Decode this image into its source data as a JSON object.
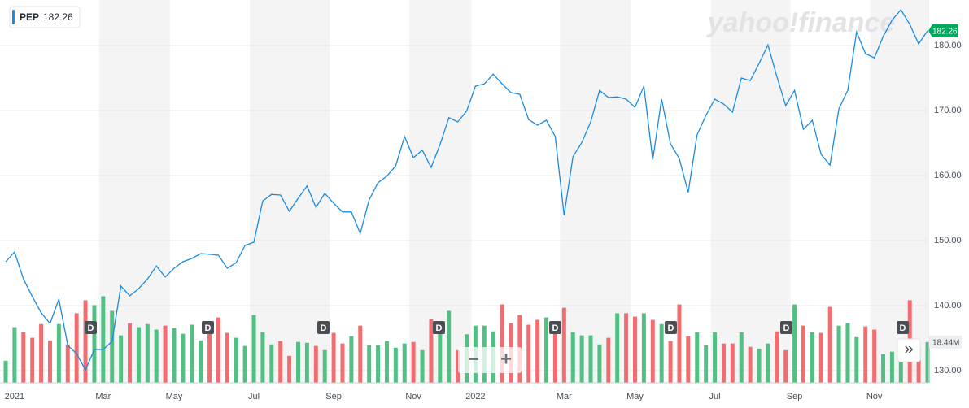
{
  "chart_data": {
    "type": "line",
    "watermark": "yahoo!finance",
    "categories": [
      null,
      "2021",
      null,
      null,
      null,
      null,
      null,
      null,
      null,
      null,
      null,
      "Mar",
      null,
      null,
      null,
      null,
      null,
      null,
      null,
      "May",
      null,
      null,
      null,
      null,
      null,
      null,
      null,
      null,
      "Jul",
      null,
      null,
      null,
      null,
      null,
      null,
      null,
      null,
      "Sep",
      null,
      null,
      null,
      null,
      null,
      null,
      null,
      null,
      "Nov",
      null,
      null,
      null,
      null,
      null,
      null,
      "2022",
      null,
      null,
      null,
      null,
      null,
      null,
      null,
      null,
      null,
      "Mar",
      null,
      null,
      null,
      null,
      null,
      null,
      null,
      "May",
      null,
      null,
      null,
      null,
      null,
      null,
      null,
      null,
      "Jul",
      null,
      null,
      null,
      null,
      null,
      null,
      null,
      null,
      "Sep",
      null,
      null,
      null,
      null,
      null,
      null,
      null,
      null,
      "Nov",
      null,
      null,
      null,
      null,
      null,
      null
    ],
    "series": [
      {
        "name": "PEP",
        "color": "#1a8be0",
        "values": [
          146.75,
          148.25,
          144.1,
          141.4,
          138.9,
          137.25,
          141,
          133.9,
          132.6,
          130.1,
          133.25,
          133.25,
          134.5,
          143,
          141.5,
          142.6,
          144.1,
          146.1,
          144.4,
          145.75,
          146.75,
          147.25,
          148,
          147.9,
          147.75,
          145.75,
          146.6,
          149.25,
          149.75,
          156.1,
          157.1,
          157,
          154.5,
          156.5,
          158.4,
          155.1,
          157.25,
          155.75,
          154.4,
          154.4,
          151.1,
          156.25,
          158.9,
          159.9,
          161.5,
          166,
          162.75,
          163.9,
          161.25,
          164.75,
          168.9,
          168.25,
          169.9,
          173.75,
          174.1,
          175.6,
          174.1,
          172.75,
          172.5,
          168.6,
          167.75,
          168.5,
          166,
          153.9,
          162.9,
          165.1,
          168.25,
          173.1,
          172,
          172.1,
          171.75,
          170.5,
          173.75,
          162.4,
          171.75,
          164.9,
          162.6,
          157.4,
          166.25,
          169.25,
          171.75,
          171,
          169.75,
          175,
          174.6,
          177.25,
          180.1,
          175.25,
          170.75,
          173.1,
          167.1,
          168.5,
          163.25,
          161.6,
          170.25,
          173.1,
          182.1,
          178.75,
          178.1,
          181.4,
          183.9,
          185.5,
          183.25,
          180.25,
          182.26
        ]
      }
    ],
    "volume": {
      "up_color": "#52c083",
      "down_color": "#f26d70",
      "values": [
        10.0,
        25.2,
        22.9,
        20.4,
        26.6,
        19.2,
        26.6,
        17.4,
        31.5,
        37.4,
        35.2,
        39.2,
        32.6,
        21.5,
        27.0,
        25.2,
        26.6,
        24.1,
        25.9,
        24.8,
        22.2,
        26.3,
        19.2,
        23.7,
        29.6,
        22.6,
        20.4,
        16.7,
        30.7,
        22.9,
        17.4,
        18.9,
        12.2,
        18.5,
        18.1,
        16.7,
        14.8,
        22.6,
        17.8,
        21.1,
        25.9,
        17.0,
        17.0,
        18.9,
        15.9,
        17.8,
        18.5,
        14.8,
        28.9,
        23.3,
        32.6,
        14.8,
        22.0,
        25.9,
        25.9,
        23.3,
        35.5,
        27.0,
        30.7,
        26.3,
        28.5,
        29.6,
        27.4,
        34.0,
        22.9,
        21.5,
        21.5,
        17.4,
        20.4,
        31.5,
        31.5,
        30.0,
        31.5,
        28.5,
        26.6,
        18.9,
        35.5,
        21.1,
        22.9,
        17.0,
        22.9,
        17.8,
        17.8,
        22.9,
        16.3,
        15.5,
        17.8,
        23.3,
        14.8,
        35.5,
        25.9,
        22.9,
        22.6,
        34.4,
        25.9,
        27.0,
        20.7,
        25.5,
        24.1,
        13.0,
        14.1,
        20.0,
        37.4,
        16.0,
        18.44
      ],
      "value_labels": [
        null,
        null,
        null,
        null,
        null,
        null,
        null,
        null,
        null,
        null,
        null,
        null,
        null,
        null,
        null,
        null,
        null,
        null,
        null,
        null,
        null,
        null,
        null,
        null,
        null,
        null,
        null,
        null,
        null,
        null,
        null,
        null,
        null,
        null,
        null,
        null,
        null,
        null,
        null,
        null,
        null,
        null,
        null,
        null,
        null,
        null,
        null,
        null,
        null,
        null,
        null,
        null,
        null,
        null,
        null,
        null,
        null,
        null,
        null,
        null,
        null,
        null,
        null,
        null,
        null,
        null,
        null,
        null,
        null,
        null,
        null,
        null,
        null,
        null,
        null,
        null,
        null,
        null,
        null,
        null,
        null,
        null,
        null,
        null,
        null,
        null,
        null,
        null,
        null,
        null,
        null,
        null,
        null,
        null,
        null,
        null,
        null,
        null,
        null,
        null,
        null,
        null,
        null,
        null,
        "18.44M"
      ]
    },
    "ylim": [
      128.125,
      187
    ],
    "yticks": [
      {
        "value": 130,
        "label": "130.00"
      },
      {
        "value": 140,
        "label": "140.00"
      },
      {
        "value": 150,
        "label": "150.00"
      },
      {
        "value": 160,
        "label": "160.00"
      },
      {
        "value": 170,
        "label": "170.00"
      },
      {
        "value": 180,
        "label": "180.00"
      }
    ],
    "y2lim": [
      0,
      60
    ],
    "grid": true,
    "last_price_color": "#00a95c",
    "dividends": [
      "D",
      "D",
      "D",
      "D",
      "D",
      "D",
      "D",
      "D"
    ],
    "buttons": {
      "zoom_out": "−",
      "zoom_in": "+",
      "expand": "»"
    }
  }
}
